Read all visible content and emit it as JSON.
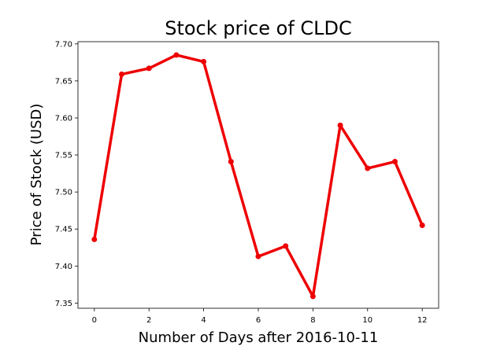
{
  "chart_data": {
    "type": "line",
    "title": "Stock price of CLDC",
    "xlabel": "Number of Days after 2016-10-11",
    "ylabel": "Price of Stock (USD)",
    "xlim": [
      -0.6,
      12.6
    ],
    "ylim": [
      7.343,
      7.703
    ],
    "xticks": [
      0,
      2,
      4,
      6,
      8,
      10,
      12
    ],
    "yticks": [
      7.35,
      7.4,
      7.45,
      7.5,
      7.55,
      7.6,
      7.65,
      7.7
    ],
    "grid": false,
    "series": [
      {
        "color": "#ee0000",
        "x": [
          0,
          1,
          2,
          3,
          4,
          5,
          6,
          7,
          8,
          9,
          10,
          11,
          12
        ],
        "values": [
          7.436,
          7.659,
          7.667,
          7.685,
          7.676,
          7.541,
          7.413,
          7.427,
          7.359,
          7.59,
          7.532,
          7.541,
          7.455
        ]
      }
    ]
  }
}
